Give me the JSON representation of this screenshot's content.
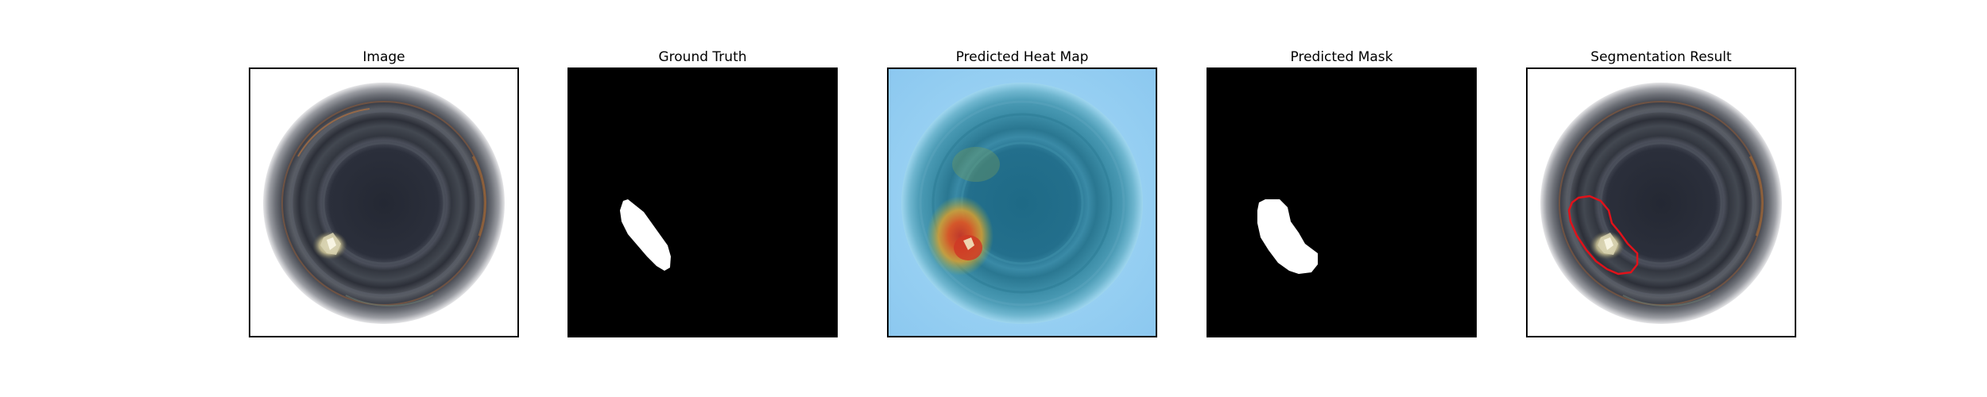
{
  "panels": [
    {
      "id": "image",
      "title": "Image"
    },
    {
      "id": "ground-truth",
      "title": "Ground Truth"
    },
    {
      "id": "heat-map",
      "title": "Predicted Heat Map"
    },
    {
      "id": "predicted-mask",
      "title": "Predicted Mask"
    },
    {
      "id": "segmentation",
      "title": "Segmentation Result"
    }
  ],
  "colors": {
    "mask_background": "#000000",
    "mask_foreground": "#ffffff",
    "contour": "#e0121a"
  }
}
